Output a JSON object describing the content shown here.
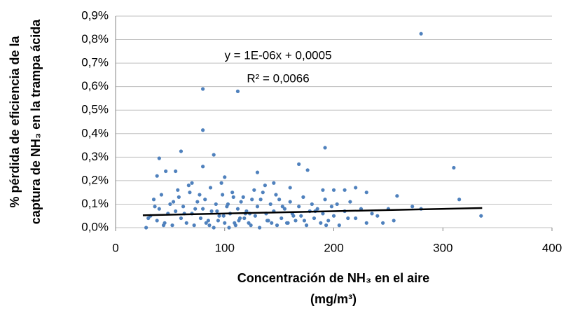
{
  "chart_data": {
    "type": "scatter",
    "xlabel": [
      "Concentración de NH₃ en el aire",
      "(mg/m³)"
    ],
    "ylabel": [
      "% pérdida de eficiencia de la",
      "captura de NH₃ en la trampa ácida"
    ],
    "annotations": [
      "y = 1E-06x + 0,0005",
      "R² = 0,0066"
    ],
    "color": "#4f81bd",
    "grid": true,
    "xlim": [
      0,
      400
    ],
    "xticks": [
      0,
      100,
      200,
      300,
      400
    ],
    "ylim": [
      0,
      0.9
    ],
    "yticks": [
      {
        "value": 0,
        "label": "0,0%"
      },
      {
        "value": 0.1,
        "label": "0,1%"
      },
      {
        "value": 0.2,
        "label": "0,2%"
      },
      {
        "value": 0.3,
        "label": "0,3%"
      },
      {
        "value": 0.4,
        "label": "0,4%"
      },
      {
        "value": 0.5,
        "label": "0,5%"
      },
      {
        "value": 0.6,
        "label": "0,6%"
      },
      {
        "value": 0.7,
        "label": "0,7%"
      },
      {
        "value": 0.8,
        "label": "0,8%"
      },
      {
        "value": 0.9,
        "label": "0,9%"
      }
    ],
    "x": [
      28,
      32,
      35,
      38,
      40,
      42,
      45,
      48,
      50,
      52,
      55,
      58,
      60,
      62,
      65,
      68,
      70,
      72,
      75,
      78,
      80,
      82,
      85,
      88,
      90,
      92,
      95,
      98,
      100,
      102,
      105,
      108,
      110,
      112,
      115,
      118,
      120,
      122,
      125,
      128,
      130,
      132,
      135,
      138,
      140,
      142,
      145,
      148,
      150,
      152,
      155,
      158,
      160,
      162,
      165,
      168,
      170,
      172,
      175,
      178,
      180,
      182,
      185,
      188,
      190,
      192,
      195,
      198,
      200,
      205,
      210,
      215,
      220,
      225,
      230,
      235,
      240,
      245,
      250,
      255,
      30,
      36,
      44,
      53,
      63,
      73,
      83,
      93,
      103,
      113,
      123,
      133,
      143,
      153,
      163,
      173,
      183,
      193,
      203,
      213,
      57,
      67,
      77,
      87,
      97,
      107,
      117,
      127,
      137,
      147,
      86,
      94,
      99,
      104,
      109,
      114,
      119,
      124,
      139,
      157,
      280,
      80,
      112,
      80,
      192,
      60,
      90,
      40,
      168,
      310,
      176,
      130,
      80,
      100,
      38,
      145,
      55,
      315,
      335,
      272,
      258,
      210,
      230,
      280,
      46,
      190,
      200,
      220,
      160,
      70
    ],
    "values": [
      0.0,
      0.05,
      0.12,
      0.03,
      0.08,
      0.14,
      0.02,
      0.06,
      0.1,
      0.01,
      0.07,
      0.13,
      0.04,
      0.09,
      0.02,
      0.15,
      0.06,
      0.01,
      0.11,
      0.04,
      0.08,
      0.12,
      0.03,
      0.07,
      0.0,
      0.1,
      0.05,
      0.14,
      0.02,
      0.09,
      0.06,
      0.13,
      0.01,
      0.08,
      0.11,
      0.04,
      0.07,
      0.02,
      0.12,
      0.05,
      0.09,
      0.0,
      0.15,
      0.06,
      0.03,
      0.1,
      0.07,
      0.01,
      0.12,
      0.04,
      0.08,
      0.02,
      0.11,
      0.06,
      0.03,
      0.09,
      0.05,
      0.13,
      0.01,
      0.07,
      0.1,
      0.04,
      0.08,
      0.02,
      0.06,
      0.12,
      0.03,
      0.09,
      0.05,
      0.01,
      0.07,
      0.11,
      0.04,
      0.08,
      0.02,
      0.06,
      0.05,
      0.02,
      0.08,
      0.03,
      0.04,
      0.09,
      0.01,
      0.11,
      0.06,
      0.08,
      0.02,
      0.07,
      0.1,
      0.03,
      0.06,
      0.12,
      0.02,
      0.09,
      0.05,
      0.03,
      0.07,
      0.01,
      0.1,
      0.04,
      0.16,
      0.18,
      0.14,
      0.17,
      0.19,
      0.15,
      0.13,
      0.16,
      0.18,
      0.14,
      0.01,
      0.03,
      0.05,
      0.0,
      0.02,
      0.04,
      0.06,
      0.01,
      0.03,
      0.02,
      0.825,
      0.59,
      0.58,
      0.415,
      0.34,
      0.325,
      0.31,
      0.295,
      0.27,
      0.255,
      0.245,
      0.235,
      0.26,
      0.215,
      0.22,
      0.19,
      0.24,
      0.12,
      0.05,
      0.09,
      0.135,
      0.16,
      0.15,
      0.08,
      0.24,
      0.16,
      0.16,
      0.17,
      0.17,
      0.19
    ],
    "trendline": {
      "x": [
        25,
        336
      ],
      "values": [
        0.0525,
        0.0836
      ],
      "color": "#000000"
    }
  }
}
